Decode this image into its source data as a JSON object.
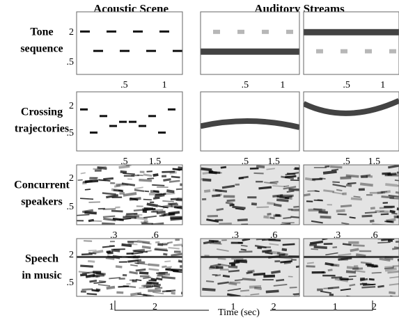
{
  "header": {
    "left": "Acoustic Scene",
    "right": "Auditory Streams"
  },
  "rows": [
    {
      "label": [
        "Tone",
        "sequence"
      ],
      "yticks": [
        "2",
        ".5"
      ],
      "xticks": [
        ".5",
        "1"
      ]
    },
    {
      "label": [
        "Crossing",
        "trajectories"
      ],
      "yticks": [
        "2",
        ".5"
      ],
      "xticks": [
        ".5",
        "1.5"
      ]
    },
    {
      "label": [
        "Concurrent",
        "speakers"
      ],
      "yticks": [
        "2",
        ".5"
      ],
      "xticks": [
        ".3",
        ".6"
      ]
    },
    {
      "label": [
        "Speech",
        "in music"
      ],
      "yticks": [
        "2",
        ".5"
      ],
      "xticks": [
        "1",
        "2"
      ]
    }
  ],
  "xlabel": "Time (sec)"
}
